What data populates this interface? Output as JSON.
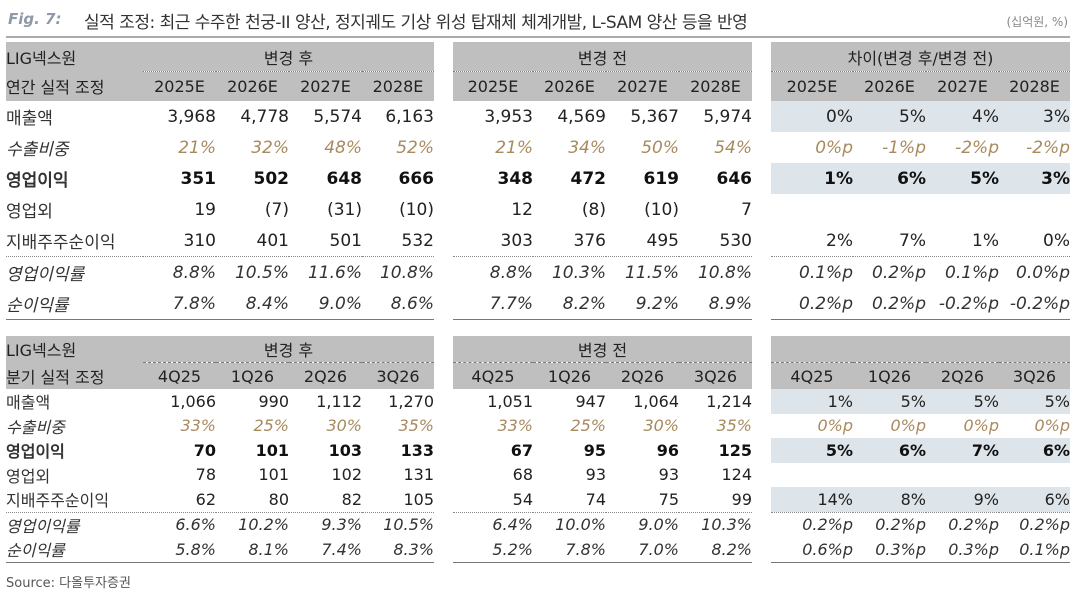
{
  "header": {
    "fig_label": "Fig. 7:",
    "title": "실적 조정: 최근 수주한 천궁-II 양산, 정지궤도 기상 위성 탑재체 체계개발, L-SAM 양산 등을 반영",
    "unit": "(십억원, %)"
  },
  "annual": {
    "company": "LIG넥스원",
    "row_header": "연간 실적 조정",
    "section_after": "변경 후",
    "section_before": "변경 전",
    "section_diff": "차이(변경 후/변경 전)",
    "columns": [
      "2025E",
      "2026E",
      "2027E",
      "2028E"
    ],
    "rows": [
      {
        "label": "매출액",
        "after": [
          "3,968",
          "4,778",
          "5,574",
          "6,163"
        ],
        "before": [
          "3,953",
          "4,569",
          "5,367",
          "5,974"
        ],
        "diff": [
          "0%",
          "5%",
          "4%",
          "3%"
        ]
      },
      {
        "label": "수출비중",
        "after": [
          "21%",
          "32%",
          "48%",
          "52%"
        ],
        "before": [
          "21%",
          "34%",
          "50%",
          "54%"
        ],
        "diff": [
          "0%p",
          "-1%p",
          "-2%p",
          "-2%p"
        ]
      },
      {
        "label": "영업이익",
        "after": [
          "351",
          "502",
          "648",
          "666"
        ],
        "before": [
          "348",
          "472",
          "619",
          "646"
        ],
        "diff": [
          "1%",
          "6%",
          "5%",
          "3%"
        ]
      },
      {
        "label": "영업외",
        "after": [
          "19",
          "(7)",
          "(31)",
          "(10)"
        ],
        "before": [
          "12",
          "(8)",
          "(10)",
          "7"
        ],
        "diff": [
          "",
          "",
          "",
          ""
        ]
      },
      {
        "label": "지배주주순이익",
        "after": [
          "310",
          "401",
          "501",
          "532"
        ],
        "before": [
          "303",
          "376",
          "495",
          "530"
        ],
        "diff": [
          "2%",
          "7%",
          "1%",
          "0%"
        ]
      },
      {
        "label": "영업이익률",
        "after": [
          "8.8%",
          "10.5%",
          "11.6%",
          "10.8%"
        ],
        "before": [
          "8.8%",
          "10.3%",
          "11.5%",
          "10.8%"
        ],
        "diff": [
          "0.1%p",
          "0.2%p",
          "0.1%p",
          "0.0%p"
        ]
      },
      {
        "label": "순이익률",
        "after": [
          "7.8%",
          "8.4%",
          "9.0%",
          "8.6%"
        ],
        "before": [
          "7.7%",
          "8.2%",
          "9.2%",
          "8.9%"
        ],
        "diff": [
          "0.2%p",
          "0.2%p",
          "-0.2%p",
          "-0.2%p"
        ]
      }
    ]
  },
  "quarterly": {
    "company": "LIG넥스원",
    "row_header": "분기 실적 조정",
    "section_after": "변경 후",
    "section_before": "변경 전",
    "section_diff": "",
    "columns": [
      "4Q25",
      "1Q26",
      "2Q26",
      "3Q26"
    ],
    "rows": [
      {
        "label": "매출액",
        "after": [
          "1,066",
          "990",
          "1,112",
          "1,270"
        ],
        "before": [
          "1,051",
          "947",
          "1,064",
          "1,214"
        ],
        "diff": [
          "1%",
          "5%",
          "5%",
          "5%"
        ]
      },
      {
        "label": "수출비중",
        "after": [
          "33%",
          "25%",
          "30%",
          "35%"
        ],
        "before": [
          "33%",
          "25%",
          "30%",
          "35%"
        ],
        "diff": [
          "0%p",
          "0%p",
          "0%p",
          "0%p"
        ]
      },
      {
        "label": "영업이익",
        "after": [
          "70",
          "101",
          "103",
          "133"
        ],
        "before": [
          "67",
          "95",
          "96",
          "125"
        ],
        "diff": [
          "5%",
          "6%",
          "7%",
          "6%"
        ]
      },
      {
        "label": "영업외",
        "after": [
          "78",
          "101",
          "102",
          "131"
        ],
        "before": [
          "68",
          "93",
          "93",
          "124"
        ],
        "diff": [
          "",
          "",
          "",
          ""
        ]
      },
      {
        "label": "지배주주순이익",
        "after": [
          "62",
          "80",
          "82",
          "105"
        ],
        "before": [
          "54",
          "74",
          "75",
          "99"
        ],
        "diff": [
          "14%",
          "8%",
          "9%",
          "6%"
        ]
      },
      {
        "label": "영업이익률",
        "after": [
          "6.6%",
          "10.2%",
          "9.3%",
          "10.5%"
        ],
        "before": [
          "6.4%",
          "10.0%",
          "9.0%",
          "10.3%"
        ],
        "diff": [
          "0.2%p",
          "0.2%p",
          "0.2%p",
          "0.2%p"
        ]
      },
      {
        "label": "순이익률",
        "after": [
          "5.8%",
          "8.1%",
          "7.4%",
          "8.3%"
        ],
        "before": [
          "5.2%",
          "7.8%",
          "7.0%",
          "8.2%"
        ],
        "diff": [
          "0.6%p",
          "0.3%p",
          "0.3%p",
          "0.1%p"
        ]
      }
    ]
  },
  "source": "Source: 다올투자증권"
}
